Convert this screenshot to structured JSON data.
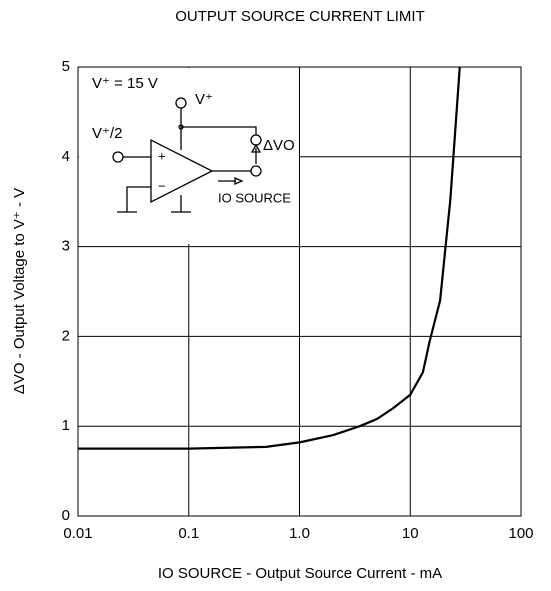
{
  "chart_data": {
    "type": "line",
    "title": "OUTPUT SOURCE CURRENT LIMIT",
    "xlabel": "IO SOURCE - Output Source Current - mA",
    "ylabel": "ΔVO - Output Voltage to V⁺ - V",
    "xscale": "log",
    "grid": true,
    "xlim": [
      0.01,
      100
    ],
    "xticks": [
      0.01,
      0.1,
      {
        "value": 1,
        "label": "1.0"
      },
      10,
      100
    ],
    "ylim": [
      0,
      5
    ],
    "yticks": [
      0,
      1,
      2,
      3,
      4,
      5
    ],
    "series": [
      {
        "color": "#000000",
        "x": [
          0.01,
          0.1,
          0.5,
          1,
          2,
          3.5,
          5,
          7,
          10,
          13,
          15,
          18.6,
          23,
          28
        ],
        "values": [
          0.75,
          0.75,
          0.77,
          0.82,
          0.9,
          1.0,
          1.08,
          1.2,
          1.35,
          1.6,
          1.95,
          2.4,
          3.52,
          5
        ]
      }
    ],
    "annotations": [
      "V⁺ = 15 V",
      "V⁺",
      "V⁺/2",
      "ΔVO",
      "IO SOURCE",
      "+",
      "−"
    ]
  }
}
